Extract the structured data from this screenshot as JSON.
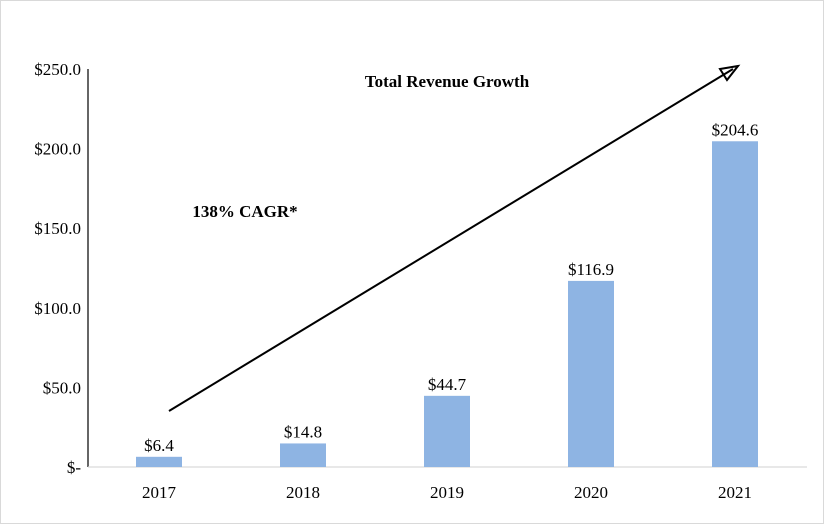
{
  "chart_data": {
    "type": "bar",
    "title": "Total Revenue Growth",
    "annotation": "138% CAGR*",
    "categories": [
      "2017",
      "2018",
      "2019",
      "2020",
      "2021"
    ],
    "values": [
      6.4,
      14.8,
      44.7,
      116.9,
      204.6
    ],
    "data_labels": [
      "$6.4",
      "$14.8",
      "$44.7",
      "$116.9",
      "$204.6"
    ],
    "ylim": [
      0,
      250
    ],
    "yticks": [
      0,
      50,
      100,
      150,
      200,
      250
    ],
    "ytick_labels": [
      "$-",
      "$50.0",
      "$100.0",
      "$150.0",
      "$200.0",
      "$250.0"
    ],
    "grid": false,
    "bar_color": "#8EB4E3",
    "trend_arrow": true
  }
}
